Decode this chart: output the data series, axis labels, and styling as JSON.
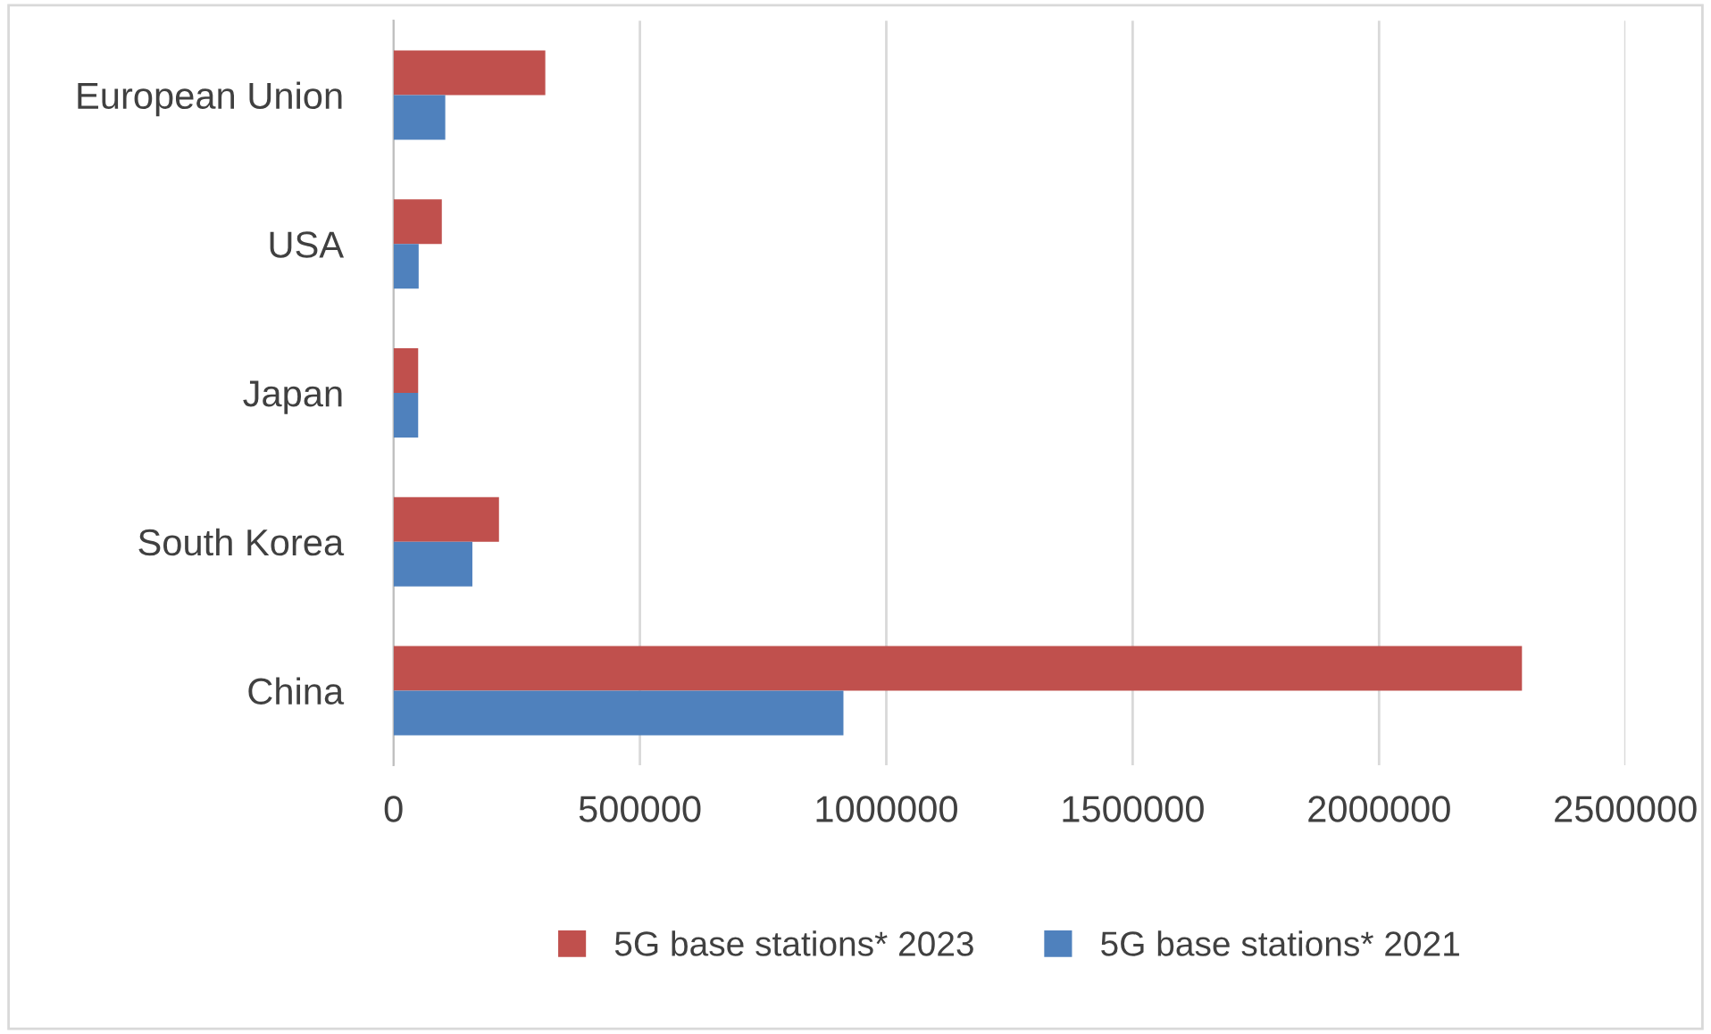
{
  "chart_data": {
    "type": "bar",
    "orientation": "horizontal",
    "categories": [
      "European Union",
      "USA",
      "Japan",
      "South Korea",
      "China"
    ],
    "series": [
      {
        "name": "5G base stations* 2023",
        "color": "#c0504d",
        "values": [
          308000,
          98000,
          50000,
          214000,
          2290000
        ]
      },
      {
        "name": "5G base stations* 2021",
        "color": "#4f81bd",
        "values": [
          105000,
          51000,
          50000,
          160000,
          913000
        ]
      }
    ],
    "xlim": [
      0,
      2500000
    ],
    "xticks": [
      0,
      500000,
      1000000,
      1500000,
      2000000,
      2500000
    ],
    "grid": "x",
    "legend": "bottom"
  }
}
